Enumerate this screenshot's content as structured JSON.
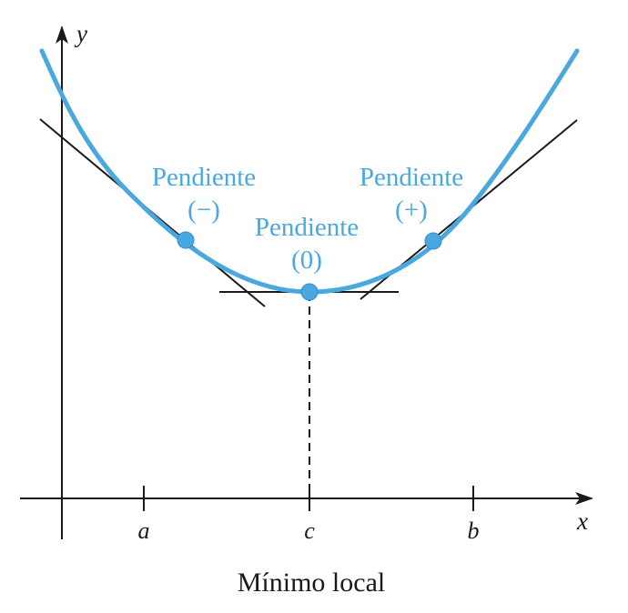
{
  "axes": {
    "x_label": "x",
    "y_label": "y"
  },
  "ticks": {
    "a": "a",
    "c": "c",
    "b": "b"
  },
  "annotations": {
    "left": {
      "line1": "Pendiente",
      "line2": "(−)"
    },
    "center": {
      "line1": "Pendiente",
      "line2": "(0)"
    },
    "right": {
      "line1": "Pendiente",
      "line2": "(+)"
    }
  },
  "caption": "Mínimo local",
  "colors": {
    "curve": "#4aa8de",
    "lines": "#1a1a1a"
  }
}
